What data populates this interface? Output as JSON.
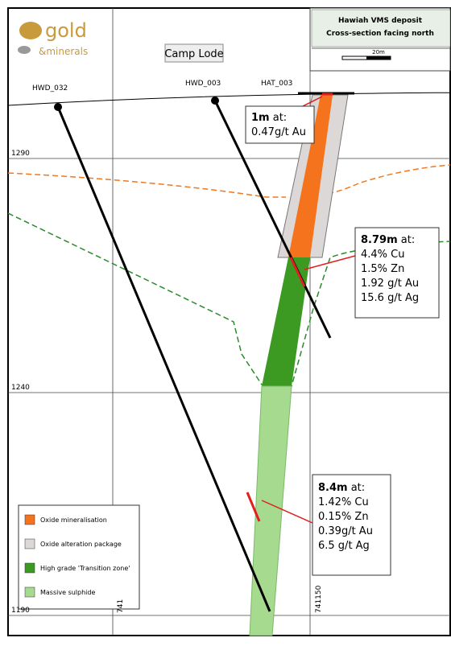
{
  "logo": {
    "word": "gold",
    "sub": "&minerals"
  },
  "header": {
    "title": "Hawiah VMS deposit",
    "subtitle": "Cross-section facing north",
    "scale": "20m"
  },
  "section_label": "Camp Lode",
  "holes": [
    "HWD_032",
    "HWD_003",
    "HAT_003"
  ],
  "elevations": [
    "1290",
    "1240",
    "1190"
  ],
  "eastings": [
    "741",
    "741150"
  ],
  "callouts": [
    {
      "bold": "1m",
      "rest": " at:",
      "lines": [
        "0.47g/t Au"
      ]
    },
    {
      "bold": "8.79m",
      "rest": " at:",
      "lines": [
        "4.4% Cu",
        "1.5% Zn",
        "1.92 g/t Au",
        "15.6 g/t Ag"
      ]
    },
    {
      "bold": "8.4m",
      "rest": " at:",
      "lines": [
        "1.42% Cu",
        "0.15% Zn",
        "0.39g/t Au",
        "6.5 g/t Ag"
      ]
    }
  ],
  "legend": [
    "Oxide mineralisation",
    "Oxide alteration package",
    "High grade 'Transition zone'",
    "Massive sulphide"
  ]
}
